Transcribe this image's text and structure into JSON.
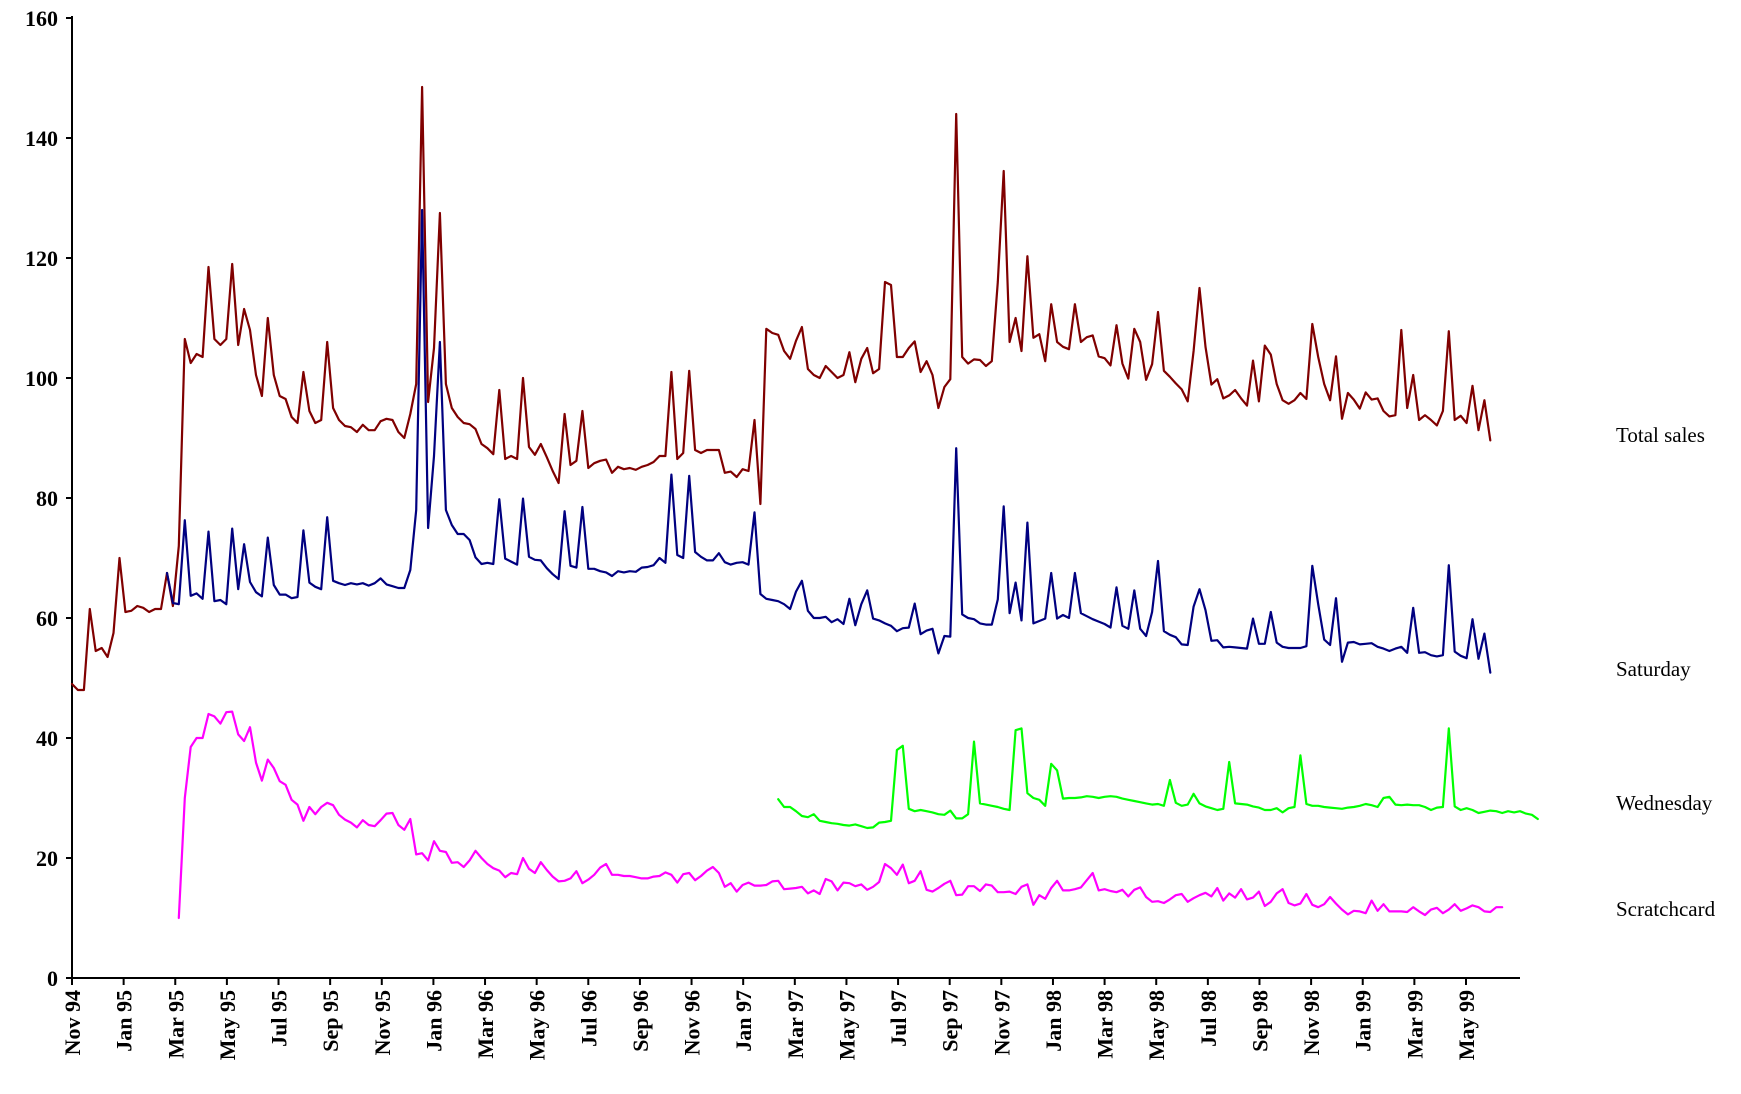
{
  "chart_data": {
    "type": "line",
    "title": "",
    "xlabel": "",
    "ylabel": "",
    "ylim": [
      0,
      160
    ],
    "y_ticks": [
      0,
      20,
      40,
      60,
      80,
      100,
      120,
      140,
      160
    ],
    "x_tick_labels": [
      "Nov 94",
      "Jan 95",
      "Mar 95",
      "May 95",
      "Jul 95",
      "Sep 95",
      "Nov 95",
      "Jan 96",
      "Mar 96",
      "May 96",
      "Jul 96",
      "Sep 96",
      "Nov 96",
      "Jan 97",
      "Mar 97",
      "May 97",
      "Jul 97",
      "Sep 97",
      "Nov 97",
      "Jan 98",
      "Mar 98",
      "May 98",
      "Jul 98",
      "Sep 98",
      "Nov 98",
      "Jan 99",
      "Mar 99",
      "May 99"
    ],
    "x_range_weeks": [
      0,
      244
    ],
    "grid": false,
    "legend": "direct labels at right",
    "series": [
      {
        "name": "Total sales",
        "color": "#800000",
        "start_week": 0,
        "values": [
          49,
          48,
          48,
          61.5,
          54.5,
          55,
          53.5,
          57.5,
          70,
          61,
          61.2,
          62,
          61.7,
          61,
          61.5,
          61.5,
          67.5,
          62,
          72,
          106.5,
          102.5,
          104,
          103.5,
          118.5,
          106.5,
          105.5,
          106.5,
          119,
          105.5,
          111.5,
          108,
          100.5,
          97,
          110,
          100.5,
          97,
          96.5,
          93.5,
          92.5,
          101,
          94.5,
          92.5,
          93,
          106,
          95,
          93,
          92,
          91.8,
          91,
          92.2,
          91.3,
          91.3,
          92.8,
          93.2,
          93,
          91,
          90,
          94,
          99,
          148.5,
          96,
          105,
          127.5,
          99,
          95,
          93.5,
          92.5,
          92.3,
          91.5,
          89,
          88.3,
          87.3,
          98,
          86.5,
          87,
          86.5,
          100,
          88.5,
          87.2,
          89,
          86.8,
          84.5,
          82.5,
          94,
          85.5,
          86.2,
          94.5,
          85,
          85.8,
          86.2,
          86.4,
          84.2,
          85.2,
          84.8,
          85,
          84.7,
          85.2,
          85.5,
          86,
          87,
          87,
          101,
          86.5,
          87.5,
          101.2,
          88,
          87.5,
          88,
          88,
          88,
          84.2,
          84.4,
          83.5,
          84.8,
          84.5,
          93,
          79,
          108.2,
          107.5,
          107.2,
          104.5,
          103.2,
          106.2,
          108.5,
          101.5,
          100.5,
          100,
          102,
          101,
          100,
          100.5,
          104.3,
          99.3,
          103.2,
          105,
          100.8,
          101.5,
          116,
          115.5,
          103.5,
          103.5,
          105,
          106.1,
          101,
          102.8,
          100.5,
          95,
          98.5,
          99.8,
          144,
          103.5,
          102.4,
          103.1,
          103,
          102,
          102.8,
          116,
          134.5,
          106,
          110,
          104.5,
          120.3,
          106.7,
          107.3,
          102.8,
          112.3,
          106,
          105.2,
          104.8,
          112.3,
          106,
          106.8,
          107.1,
          103.6,
          103.3,
          102.1,
          108.8,
          102.4,
          99.9,
          108.2,
          106,
          99.7,
          102.3,
          111,
          101.2,
          100.2,
          99.1,
          98.1,
          96.1,
          104.5,
          115,
          105.2,
          98.9,
          99.8,
          96.6,
          97.1,
          98,
          96.6,
          95.4,
          102.9,
          96.1,
          105.4,
          103.9,
          99,
          96.3,
          95.7,
          96.3,
          97.5,
          96.5,
          109,
          103.5,
          99,
          96.3,
          103.6,
          93.2,
          97.5,
          96.4,
          94.9,
          97.6,
          96.4,
          96.6,
          94.5,
          93.6,
          93.8,
          108,
          95,
          100.5,
          93,
          93.8,
          93,
          92.1,
          94.5,
          107.8,
          93,
          93.7,
          92.5,
          98.7,
          91.3,
          96.3,
          89.6
        ]
      },
      {
        "name": "Saturday",
        "color": "#000080",
        "start_week": 16,
        "values": [
          67.5,
          62.5,
          62.3,
          76.3,
          63.7,
          64.1,
          63.2,
          74.4,
          62.8,
          63,
          62.3,
          74.9,
          64.8,
          72.3,
          66,
          64.3,
          63.6,
          73.4,
          65.5,
          63.9,
          63.9,
          63.3,
          63.5,
          74.6,
          65.9,
          65.2,
          64.8,
          76.8,
          66.2,
          65.8,
          65.5,
          65.8,
          65.6,
          65.8,
          65.4,
          65.8,
          66.6,
          65.6,
          65.3,
          65,
          65,
          68,
          78,
          128,
          75,
          87,
          106,
          78,
          75.5,
          74,
          74,
          73,
          70.1,
          69,
          69.2,
          69,
          79.8,
          69.9,
          69.4,
          68.9,
          79.9,
          70.2,
          69.7,
          69.6,
          68.3,
          67.3,
          66.5,
          77.8,
          68.7,
          68.4,
          78.5,
          68.2,
          68.2,
          67.8,
          67.6,
          67,
          67.8,
          67.6,
          67.8,
          67.7,
          68.4,
          68.5,
          68.8,
          70,
          69.2,
          83.9,
          70.5,
          70,
          83.7,
          71,
          70.2,
          69.6,
          69.6,
          70.8,
          69.3,
          68.9,
          69.2,
          69.3,
          68.9,
          77.6,
          64,
          63.2,
          63,
          62.8,
          62.3,
          61.5,
          64.4,
          66.2,
          61.2,
          60,
          60,
          60.2,
          59.3,
          59.8,
          59,
          63.2,
          58.8,
          62.3,
          64.6,
          59.9,
          59.6,
          59.1,
          58.7,
          57.8,
          58.3,
          58.4,
          62.4,
          57.3,
          57.9,
          58.2,
          54.1,
          57,
          56.9,
          88.3,
          60.6,
          60,
          59.8,
          59.1,
          58.9,
          58.9,
          63.1,
          78.6,
          60.8,
          65.9,
          59.6,
          75.9,
          59.1,
          59.5,
          59.9,
          67.5,
          59.9,
          60.5,
          60,
          67.5,
          60.8,
          60.3,
          59.8,
          59.4,
          59,
          58.4,
          65.1,
          58.7,
          58.2,
          64.6,
          58.2,
          57,
          61,
          69.5,
          57.8,
          57.2,
          56.8,
          55.6,
          55.5,
          61.9,
          64.8,
          61.3,
          56.2,
          56.3,
          55.1,
          55.2,
          55.1,
          55,
          54.9,
          59.9,
          55.7,
          55.7,
          61,
          55.9,
          55.2,
          55,
          55,
          55,
          55.3,
          68.7,
          62.3,
          56.4,
          55.5,
          63.3,
          52.7,
          55.9,
          56,
          55.6,
          55.7,
          55.8,
          55.2,
          54.9,
          54.5,
          54.9,
          55.2,
          54.2,
          61.7,
          54.2,
          54.3,
          53.8,
          53.6,
          53.8,
          68.8,
          54.4,
          53.7,
          53.3,
          59.8,
          53.2,
          57.4,
          50.9
        ]
      },
      {
        "name": "Wednesday",
        "color": "#00ff00",
        "start_week": 119,
        "values": [
          29.8,
          28.5,
          28.5,
          27.8,
          27,
          26.8,
          27.3,
          26.2,
          26,
          25.8,
          25.7,
          25.5,
          25.4,
          25.6,
          25.3,
          25,
          25.1,
          25.9,
          26,
          26.2,
          38,
          38.7,
          28.2,
          27.8,
          28,
          27.8,
          27.6,
          27.3,
          27.2,
          27.9,
          26.6,
          26.6,
          27.3,
          39.4,
          29.1,
          28.9,
          28.7,
          28.5,
          28.2,
          28,
          41.3,
          41.6,
          30.8,
          30,
          29.7,
          28.7,
          35.7,
          34.6,
          29.9,
          30,
          30,
          30.1,
          30.3,
          30.2,
          30,
          30.2,
          30.3,
          30.2,
          29.9,
          29.7,
          29.5,
          29.3,
          29.1,
          28.9,
          29,
          28.7,
          33,
          29.2,
          28.7,
          28.9,
          30.7,
          29.1,
          28.6,
          28.3,
          28,
          28.2,
          36,
          29.1,
          29,
          28.9,
          28.6,
          28.4,
          28,
          28,
          28.3,
          27.6,
          28.3,
          28.5,
          37.1,
          29,
          28.7,
          28.7,
          28.5,
          28.4,
          28.3,
          28.2,
          28.4,
          28.5,
          28.7,
          29,
          28.8,
          28.5,
          30,
          30.2,
          28.9,
          28.8,
          28.9,
          28.8,
          28.8,
          28.5,
          28,
          28.4,
          28.5,
          41.6,
          28.6,
          28,
          28.3,
          28,
          27.5,
          27.7,
          27.9,
          27.8,
          27.5,
          27.8,
          27.6,
          27.8,
          27.4,
          27.2,
          26.5
        ]
      },
      {
        "name": "Scratchcard",
        "color": "#ff00ff",
        "start_week": 18,
        "values": [
          10,
          30,
          38.5,
          40,
          40,
          44,
          43.6,
          42.4,
          44.3,
          44.4,
          40.6,
          39.5,
          41.8,
          35.9,
          32.9,
          36.4,
          35,
          32.8,
          32.2,
          29.7,
          28.9,
          26.2,
          28.5,
          27.3,
          28.5,
          29.2,
          28.8,
          27.2,
          26.4,
          25.9,
          25.1,
          26.3,
          25.5,
          25.3,
          26.3,
          27.4,
          27.5,
          25.5,
          24.7,
          26.5,
          20.6,
          20.8,
          19.6,
          22.8,
          21.2,
          21,
          19.2,
          19.3,
          18.5,
          19.6,
          21.2,
          20,
          19,
          18.3,
          17.9,
          16.8,
          17.5,
          17.3,
          20,
          18.2,
          17.5,
          19.3,
          18,
          16.9,
          16.1,
          16.2,
          16.6,
          17.8,
          15.8,
          16.4,
          17.2,
          18.4,
          19,
          17.2,
          17.2,
          17,
          17,
          16.8,
          16.6,
          16.6,
          16.9,
          17,
          17.6,
          17.2,
          15.9,
          17.3,
          17.5,
          16.3,
          17,
          17.9,
          18.5,
          17.5,
          15.2,
          15.8,
          14.4,
          15.5,
          15.9,
          15.4,
          15.4,
          15.5,
          16.1,
          16.2,
          14.8,
          14.9,
          15,
          15.2,
          14.1,
          14.6,
          14,
          16.5,
          16.1,
          14.6,
          15.9,
          15.8,
          15.3,
          15.6,
          14.7,
          15.2,
          16,
          19,
          18.3,
          17.2,
          18.9,
          15.8,
          16.2,
          17.8,
          14.7,
          14.4,
          15,
          15.7,
          16.2,
          13.8,
          13.9,
          15.3,
          15.3,
          14.5,
          15.6,
          15.4,
          14.3,
          14.3,
          14.4,
          14,
          15.2,
          15.6,
          12.2,
          13.8,
          13.2,
          15,
          16.2,
          14.6,
          14.6,
          14.8,
          15.1,
          16.3,
          17.5,
          14.6,
          14.8,
          14.5,
          14.3,
          14.7,
          13.6,
          14.7,
          15.1,
          13.5,
          12.7,
          12.8,
          12.5,
          13.1,
          13.8,
          14,
          12.7,
          13.3,
          13.8,
          14.2,
          13.6,
          15,
          12.9,
          14.1,
          13.4,
          14.8,
          13.1,
          13.4,
          14.4,
          12,
          12.7,
          14.1,
          14.8,
          12.5,
          12.1,
          12.4,
          14,
          12.2,
          11.8,
          12.3,
          13.5,
          12.4,
          11.4,
          10.6,
          11.2,
          11.1,
          10.8,
          12.9,
          11.2,
          12.3,
          11.1,
          11.1,
          11.1,
          11,
          11.8,
          11.1,
          10.5,
          11.4,
          11.7,
          10.8,
          11.4,
          12.3,
          11.2,
          11.6,
          12.1,
          11.8,
          11.1,
          11,
          11.8,
          11.8
        ]
      }
    ]
  }
}
